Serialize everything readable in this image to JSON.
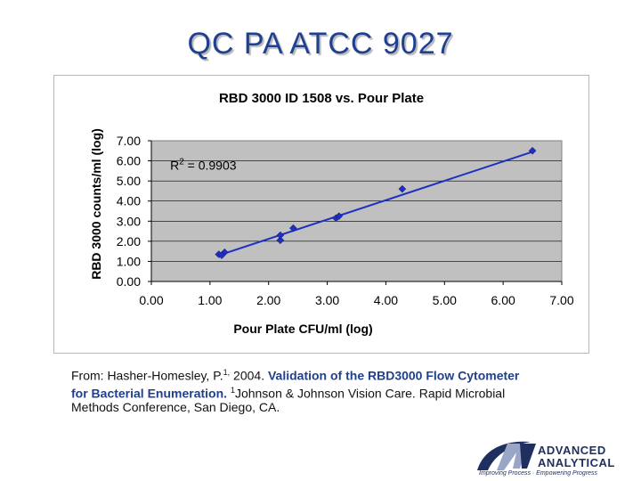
{
  "slide": {
    "title": "QC PA ATCC 9027"
  },
  "citation": {
    "prefix": "From: Hasher-Homesley, P.",
    "prefix_sup": "1,",
    "year": " 2004. ",
    "highlight": "Validation of the RBD3000 Flow Cytometer for Bacterial Enumeration.",
    "affil_sup": "1",
    "rest": "Johnson & Johnson Vision Care. Rapid Microbial Methods Conference, San Diego, CA."
  },
  "logo": {
    "line1": "ADVANCED",
    "line2": "ANALYTICAL",
    "tagline": "Improving Process · Empowering Progress"
  },
  "colors": {
    "title": "#1f3f8f",
    "plot_bg": "#c0c0c0",
    "series": "#1f2fbf"
  },
  "chart_data": {
    "type": "scatter",
    "title": "RBD 3000 ID 1508 vs. Pour Plate",
    "xlabel": "Pour Plate CFU/ml  (log)",
    "ylabel": "RBD 3000 counts/ml (log)",
    "xlim": [
      0,
      7
    ],
    "ylim": [
      0,
      7
    ],
    "xticks": [
      "0.00",
      "1.00",
      "2.00",
      "3.00",
      "4.00",
      "5.00",
      "6.00",
      "7.00"
    ],
    "yticks": [
      "0.00",
      "1.00",
      "2.00",
      "3.00",
      "4.00",
      "5.00",
      "6.00",
      "7.00"
    ],
    "grid": true,
    "annotation": {
      "text": "R",
      "sup": "2",
      "after": " = 0.9903"
    },
    "points": [
      {
        "x": 1.15,
        "y": 1.35
      },
      {
        "x": 1.25,
        "y": 1.45
      },
      {
        "x": 1.2,
        "y": 1.3
      },
      {
        "x": 2.2,
        "y": 2.05
      },
      {
        "x": 2.2,
        "y": 2.3
      },
      {
        "x": 2.42,
        "y": 2.65
      },
      {
        "x": 3.15,
        "y": 3.15
      },
      {
        "x": 3.2,
        "y": 3.25
      },
      {
        "x": 4.28,
        "y": 4.6
      },
      {
        "x": 6.5,
        "y": 6.5
      }
    ],
    "trendline": [
      {
        "x": 1.15,
        "y": 1.3
      },
      {
        "x": 6.5,
        "y": 6.45
      }
    ]
  }
}
